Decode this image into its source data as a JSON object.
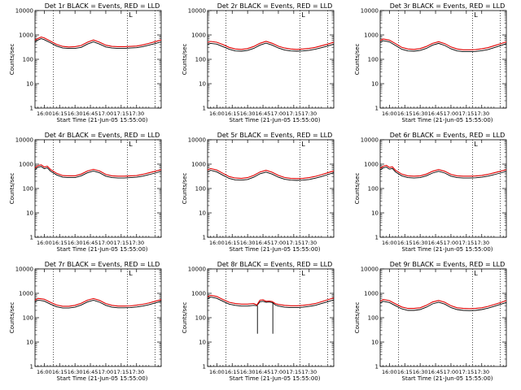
{
  "chart_data": {
    "type": "line",
    "layout": "3x3 grid of panels",
    "xlabel": "Start Time (21-Jun-05 15:55:00)",
    "ylabel": "Counts/sec",
    "y_scale": "log",
    "ylim": [
      1,
      10000
    ],
    "y_ticks": [
      "1",
      "10",
      "100",
      "1000",
      "10000"
    ],
    "x_range_minutes_after_1600": [
      -3,
      38
    ],
    "x_ticks": [
      "16:00",
      "16:15",
      "16:30",
      "16:45",
      "17:00",
      "17:15",
      "17:30"
    ],
    "x_ticks_panel_8": [
      "16:00",
      "16:15",
      "16:30",
      "16:45",
      "17:00",
      "17:15",
      "17:30"
    ],
    "vertical_dotted_lines_minutes": [
      3,
      27,
      36
    ],
    "marker_label": "L",
    "marker_minute": 27.5,
    "colors": {
      "events": "#000000",
      "lld": "#e00000"
    },
    "panels": [
      {
        "title": "Det 1r BLACK = Events, RED = LLD",
        "series": [
          {
            "name": "Events",
            "x": [
              -3,
              -2,
              -1,
              0,
              2,
              4,
              6,
              8,
              10,
              12,
              14,
              16,
              18,
              20,
              22,
              24,
              26,
              28,
              30,
              32,
              34,
              36,
              38
            ],
            "values": [
              520,
              620,
              700,
              640,
              480,
              350,
              290,
              280,
              280,
              310,
              420,
              520,
              420,
              320,
              290,
              280,
              280,
              290,
              300,
              330,
              380,
              440,
              520
            ]
          },
          {
            "name": "LLD",
            "x": [
              -3,
              -2,
              -1,
              0,
              2,
              4,
              6,
              8,
              10,
              12,
              14,
              16,
              18,
              20,
              22,
              24,
              26,
              28,
              30,
              32,
              34,
              36,
              38
            ],
            "values": [
              610,
              720,
              820,
              760,
              560,
              410,
              340,
              320,
              330,
              370,
              500,
              620,
              500,
              380,
              340,
              330,
              330,
              340,
              350,
              390,
              450,
              530,
              620
            ]
          }
        ]
      },
      {
        "title": "Det 2r BLACK = Events, RED = LLD",
        "series": [
          {
            "name": "Events",
            "x": [
              -3,
              -2,
              0,
              2,
              4,
              6,
              8,
              10,
              12,
              14,
              16,
              18,
              20,
              22,
              24,
              26,
              28,
              30,
              32,
              34,
              36,
              38
            ],
            "values": [
              420,
              450,
              420,
              330,
              260,
              220,
              215,
              230,
              280,
              380,
              460,
              380,
              290,
              240,
              220,
              215,
              220,
              235,
              260,
              300,
              350,
              420
            ]
          },
          {
            "name": "LLD",
            "x": [
              -3,
              -2,
              0,
              2,
              4,
              6,
              8,
              10,
              12,
              14,
              16,
              18,
              20,
              22,
              24,
              26,
              28,
              30,
              32,
              34,
              36,
              38
            ],
            "values": [
              500,
              540,
              500,
              400,
              310,
              265,
              255,
              275,
              335,
              455,
              550,
              455,
              345,
              290,
              265,
              255,
              265,
              280,
              310,
              360,
              420,
              500
            ]
          }
        ]
      },
      {
        "title": "Det 3r BLACK = Events, RED = LLD",
        "series": [
          {
            "name": "Events",
            "x": [
              -3,
              -2,
              0,
              2,
              4,
              6,
              8,
              10,
              12,
              14,
              16,
              18,
              20,
              22,
              24,
              26,
              28,
              30,
              32,
              34,
              36,
              38
            ],
            "values": [
              500,
              580,
              520,
              370,
              260,
              220,
              215,
              230,
              280,
              380,
              450,
              370,
              270,
              220,
              205,
              205,
              210,
              225,
              250,
              300,
              360,
              440
            ]
          },
          {
            "name": "LLD",
            "x": [
              -3,
              -2,
              0,
              2,
              4,
              6,
              8,
              10,
              12,
              14,
              16,
              18,
              20,
              22,
              24,
              26,
              28,
              30,
              32,
              34,
              36,
              38
            ],
            "values": [
              590,
              680,
              610,
              440,
              310,
              265,
              255,
              275,
              335,
              450,
              530,
              440,
              320,
              265,
              245,
              245,
              250,
              270,
              300,
              360,
              430,
              520
            ]
          }
        ]
      },
      {
        "title": "Det 4r BLACK = Events, RED = LLD",
        "series": [
          {
            "name": "Events",
            "x": [
              -3,
              -2,
              -1,
              0,
              1,
              2,
              4,
              6,
              8,
              10,
              12,
              14,
              16,
              18,
              20,
              22,
              24,
              26,
              28,
              30,
              32,
              34,
              36,
              38
            ],
            "values": [
              600,
              750,
              800,
              650,
              700,
              520,
              360,
              290,
              280,
              280,
              330,
              440,
              520,
              440,
              320,
              280,
              270,
              270,
              280,
              290,
              320,
              370,
              430,
              500
            ]
          },
          {
            "name": "LLD",
            "x": [
              -3,
              -2,
              -1,
              0,
              1,
              2,
              4,
              6,
              8,
              10,
              12,
              14,
              16,
              18,
              20,
              22,
              24,
              26,
              28,
              30,
              32,
              34,
              36,
              38
            ],
            "values": [
              700,
              880,
              940,
              760,
              820,
              610,
              420,
              340,
              330,
              330,
              390,
              520,
              610,
              520,
              380,
              330,
              320,
              320,
              330,
              340,
              380,
              440,
              510,
              590
            ]
          }
        ]
      },
      {
        "title": "Det 5r BLACK = Events, RED = LLD",
        "series": [
          {
            "name": "Events",
            "x": [
              -3,
              -2,
              0,
              2,
              4,
              6,
              8,
              10,
              12,
              14,
              16,
              18,
              20,
              22,
              24,
              26,
              28,
              30,
              32,
              34,
              36,
              38
            ],
            "values": [
              480,
              560,
              480,
              350,
              260,
              225,
              220,
              235,
              290,
              400,
              470,
              390,
              290,
              240,
              220,
              215,
              220,
              235,
              265,
              310,
              370,
              450
            ]
          },
          {
            "name": "LLD",
            "x": [
              -3,
              -2,
              0,
              2,
              4,
              6,
              8,
              10,
              12,
              14,
              16,
              18,
              20,
              22,
              24,
              26,
              28,
              30,
              32,
              34,
              36,
              38
            ],
            "values": [
              570,
              660,
              570,
              420,
              310,
              270,
              260,
              280,
              345,
              475,
              560,
              465,
              345,
              285,
              260,
              255,
              260,
              280,
              315,
              370,
              440,
              530
            ]
          }
        ]
      },
      {
        "title": "Det 6r BLACK = Events, RED = LLD",
        "series": [
          {
            "name": "Events",
            "x": [
              -3,
              -2,
              -1,
              0,
              1,
              2,
              4,
              6,
              8,
              10,
              12,
              14,
              16,
              18,
              20,
              22,
              24,
              26,
              28,
              30,
              32,
              34,
              36,
              38
            ],
            "values": [
              580,
              700,
              760,
              620,
              660,
              480,
              330,
              280,
              270,
              280,
              330,
              430,
              510,
              430,
              320,
              280,
              270,
              270,
              275,
              290,
              320,
              370,
              430,
              500
            ]
          },
          {
            "name": "LLD",
            "x": [
              -3,
              -2,
              -1,
              0,
              1,
              2,
              4,
              6,
              8,
              10,
              12,
              14,
              16,
              18,
              20,
              22,
              24,
              26,
              28,
              30,
              32,
              34,
              36,
              38
            ],
            "values": [
              680,
              820,
              890,
              730,
              770,
              560,
              390,
              330,
              320,
              330,
              390,
              510,
              600,
              510,
              380,
              330,
              320,
              320,
              325,
              345,
              380,
              440,
              510,
              590
            ]
          }
        ]
      },
      {
        "title": "Det 7r BLACK = Events, RED = LLD",
        "series": [
          {
            "name": "Events",
            "x": [
              -3,
              -2,
              0,
              2,
              4,
              6,
              8,
              10,
              12,
              14,
              16,
              18,
              20,
              22,
              24,
              26,
              28,
              30,
              32,
              34,
              36,
              38
            ],
            "values": [
              440,
              530,
              480,
              360,
              280,
              250,
              250,
              270,
              330,
              440,
              520,
              430,
              320,
              270,
              255,
              255,
              260,
              275,
              300,
              340,
              400,
              470
            ]
          },
          {
            "name": "LLD",
            "x": [
              -3,
              -2,
              0,
              2,
              4,
              6,
              8,
              10,
              12,
              14,
              16,
              18,
              20,
              22,
              24,
              26,
              28,
              30,
              32,
              34,
              36,
              38
            ],
            "values": [
              520,
              620,
              570,
              430,
              330,
              295,
              295,
              320,
              390,
              520,
              610,
              510,
              380,
              320,
              300,
              300,
              305,
              325,
              355,
              400,
              470,
              550
            ]
          }
        ]
      },
      {
        "title": "Det 8r BLACK = Events, RED = LLD",
        "dropouts": [
          {
            "x": 13.2,
            "low": 22
          },
          {
            "x": 18.2,
            "low": 22
          }
        ],
        "series": [
          {
            "name": "Events",
            "x": [
              -3,
              -2,
              0,
              2,
              4,
              6,
              8,
              10,
              12,
              13,
              14,
              15,
              16,
              17,
              18,
              19,
              20,
              22,
              24,
              26,
              28,
              30,
              32,
              34,
              36,
              38
            ],
            "values": [
              600,
              700,
              620,
              470,
              360,
              320,
              300,
              300,
              320,
              310,
              450,
              470,
              430,
              440,
              420,
              330,
              300,
              270,
              260,
              260,
              270,
              290,
              320,
              380,
              450,
              540
            ]
          },
          {
            "name": "LLD",
            "x": [
              -3,
              -2,
              0,
              2,
              4,
              6,
              8,
              10,
              12,
              13,
              14,
              15,
              16,
              17,
              18,
              19,
              20,
              22,
              24,
              26,
              28,
              30,
              32,
              34,
              36,
              38
            ],
            "values": [
              720,
              830,
              740,
              560,
              430,
              380,
              360,
              360,
              380,
              330,
              520,
              540,
              470,
              480,
              460,
              380,
              350,
              320,
              310,
              310,
              320,
              345,
              380,
              450,
              540,
              650
            ]
          }
        ]
      },
      {
        "title": "Det 9r BLACK = Events, RED = LLD",
        "series": [
          {
            "name": "Events",
            "x": [
              -3,
              -2,
              0,
              2,
              4,
              6,
              8,
              10,
              12,
              14,
              16,
              18,
              20,
              22,
              24,
              26,
              28,
              30,
              32,
              34,
              36,
              38
            ],
            "values": [
              400,
              470,
              420,
              310,
              230,
              200,
              200,
              215,
              270,
              370,
              430,
              360,
              260,
              215,
              200,
              195,
              200,
              215,
              245,
              290,
              350,
              420
            ]
          },
          {
            "name": "LLD",
            "x": [
              -3,
              -2,
              0,
              2,
              4,
              6,
              8,
              10,
              12,
              14,
              16,
              18,
              20,
              22,
              24,
              26,
              28,
              30,
              32,
              34,
              36,
              38
            ],
            "values": [
              470,
              560,
              500,
              370,
              275,
              240,
              240,
              255,
              320,
              440,
              510,
              430,
              310,
              255,
              240,
              235,
              240,
              255,
              290,
              345,
              415,
              500
            ]
          }
        ]
      }
    ]
  }
}
